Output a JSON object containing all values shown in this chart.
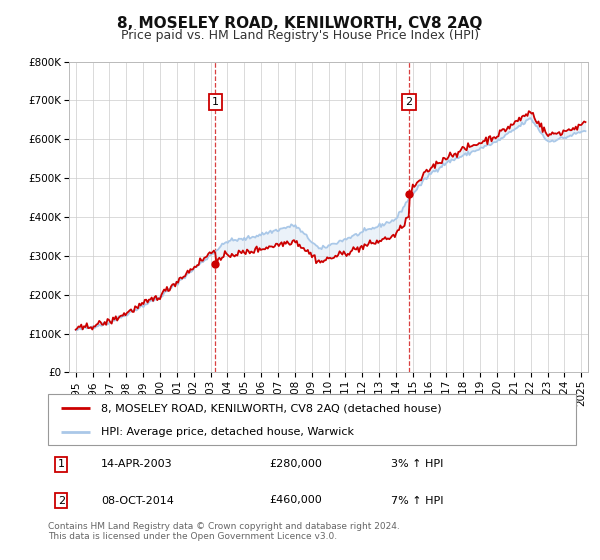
{
  "title": "8, MOSELEY ROAD, KENILWORTH, CV8 2AQ",
  "subtitle": "Price paid vs. HM Land Registry's House Price Index (HPI)",
  "ylim": [
    0,
    800000
  ],
  "yticks": [
    0,
    100000,
    200000,
    300000,
    400000,
    500000,
    600000,
    700000,
    800000
  ],
  "ytick_labels": [
    "£0",
    "£100K",
    "£200K",
    "£300K",
    "£400K",
    "£500K",
    "£600K",
    "£700K",
    "£800K"
  ],
  "xlim_start": 1994.6,
  "xlim_end": 2025.4,
  "xtick_years": [
    1995,
    1996,
    1997,
    1998,
    1999,
    2000,
    2001,
    2002,
    2003,
    2004,
    2005,
    2006,
    2007,
    2008,
    2009,
    2010,
    2011,
    2012,
    2013,
    2014,
    2015,
    2016,
    2017,
    2018,
    2019,
    2020,
    2021,
    2022,
    2023,
    2024,
    2025
  ],
  "sale1_x": 2003.286,
  "sale1_y": 280000,
  "sale1_label": "1",
  "sale1_date": "14-APR-2003",
  "sale1_price": "£280,000",
  "sale1_hpi": "3% ↑ HPI",
  "sale2_x": 2014.769,
  "sale2_y": 460000,
  "sale2_label": "2",
  "sale2_date": "08-OCT-2014",
  "sale2_price": "£460,000",
  "sale2_hpi": "7% ↑ HPI",
  "hpi_color": "#aac8e8",
  "price_color": "#cc0000",
  "shade_color": "#ddeeff",
  "grid_color": "#cccccc",
  "background_color": "#ffffff",
  "legend_line1": "8, MOSELEY ROAD, KENILWORTH, CV8 2AQ (detached house)",
  "legend_line2": "HPI: Average price, detached house, Warwick",
  "footnote": "Contains HM Land Registry data © Crown copyright and database right 2024.\nThis data is licensed under the Open Government Licence v3.0.",
  "title_fontsize": 11,
  "subtitle_fontsize": 9,
  "tick_fontsize": 7.5,
  "legend_fontsize": 8,
  "annot_fontsize": 8,
  "footnote_fontsize": 6.5
}
